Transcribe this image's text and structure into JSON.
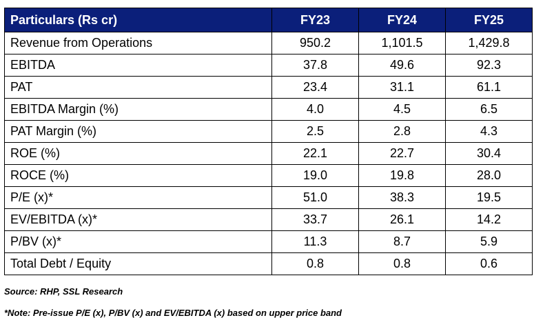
{
  "table": {
    "headers": [
      "Particulars (Rs cr)",
      "FY23",
      "FY24",
      "FY25"
    ],
    "rows": [
      {
        "label": "Revenue from Operations",
        "values": [
          "950.2",
          "1,101.5",
          "1,429.8"
        ]
      },
      {
        "label": "EBITDA",
        "values": [
          "37.8",
          "49.6",
          "92.3"
        ]
      },
      {
        "label": "PAT",
        "values": [
          "23.4",
          "31.1",
          "61.1"
        ]
      },
      {
        "label": "EBITDA Margin (%)",
        "values": [
          "4.0",
          "4.5",
          "6.5"
        ]
      },
      {
        "label": "PAT Margin (%)",
        "values": [
          "2.5",
          "2.8",
          "4.3"
        ]
      },
      {
        "label": "ROE (%)",
        "values": [
          "22.1",
          "22.7",
          "30.4"
        ]
      },
      {
        "label": "ROCE (%)",
        "values": [
          "19.0",
          "19.8",
          "28.0"
        ]
      },
      {
        "label": "P/E (x)*",
        "values": [
          "51.0",
          "38.3",
          "19.5"
        ]
      },
      {
        "label": "EV/EBITDA (x)*",
        "values": [
          "33.7",
          "26.1",
          "14.2"
        ]
      },
      {
        "label": "P/BV (x)*",
        "values": [
          "11.3",
          "8.7",
          "5.9"
        ]
      },
      {
        "label": "Total Debt / Equity",
        "values": [
          "0.8",
          "0.8",
          "0.6"
        ]
      }
    ]
  },
  "source": "Source: RHP, SSL Research",
  "note": "*Note: Pre-issue P/E (x), P/BV (x) and EV/EBITDA (x) based on upper price band",
  "colors": {
    "header_bg": "#0b1f7a",
    "header_text": "#ffffff"
  }
}
